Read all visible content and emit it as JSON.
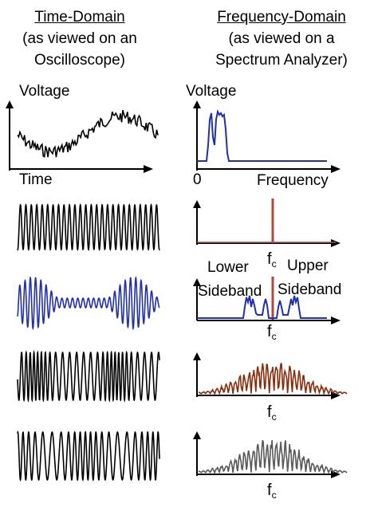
{
  "headers": {
    "left": {
      "title": "Time-Domain",
      "line1": "(as viewed on an",
      "line2": "Oscilloscope)"
    },
    "right": {
      "title": "Frequency-Domain",
      "line1": "(as viewed on a",
      "line2": "Spectrum Analyzer)"
    }
  },
  "labels": {
    "voltage_left": "Voltage",
    "time": "Time",
    "voltage_right": "Voltage",
    "zero": "0",
    "frequency": "Frequency",
    "lower": "Lower",
    "sideband_left": "Sideband",
    "upper": "Upper",
    "sideband_right": "Sideband",
    "fc_base": "f",
    "fc_sub": "c"
  },
  "colors": {
    "axis": "#000000",
    "black_wave": "#000000",
    "blue": "#1f2fb8",
    "red": "#b5463f",
    "brown": "#8a2c0a",
    "gray": "#5a5a5a"
  }
}
